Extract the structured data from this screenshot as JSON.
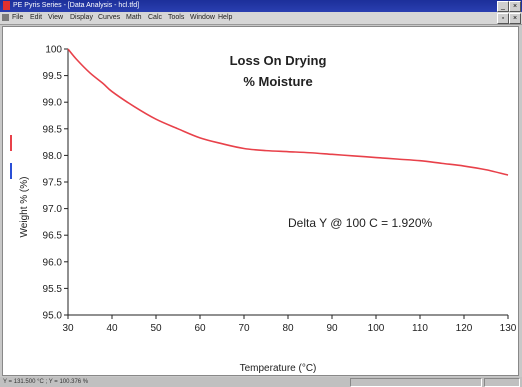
{
  "window": {
    "title": "PE Pyris Series - [Data Analysis - hcl.tfd]",
    "menu": [
      "File",
      "Edit",
      "View",
      "Display",
      "Curves",
      "Math",
      "Calc",
      "Tools",
      "Window",
      "Help"
    ]
  },
  "status": {
    "text": "Y = 131.500 °C ; Y = 100.376 %"
  },
  "colors": {
    "curve": "#e8414a",
    "legend_red": "#e8414a",
    "legend_blue": "#2a4fd6"
  },
  "chart_data": {
    "type": "line",
    "title": "Loss On Drying",
    "subtitle": "% Moisture",
    "xlabel": "Temperature (°C)",
    "ylabel": "Weight % (%)",
    "xlim": [
      30,
      130
    ],
    "ylim": [
      95.0,
      100.0
    ],
    "xticks": [
      30,
      40,
      50,
      60,
      70,
      80,
      90,
      100,
      110,
      120,
      130
    ],
    "yticks": [
      "95.0",
      "95.5",
      "96.0",
      "96.5",
      "97.0",
      "97.5",
      "98.0",
      "98.5",
      "99.0",
      "99.5",
      "100"
    ],
    "annotation": "Delta Y @ 100 C = 1.920%",
    "series": [
      {
        "x": [
          30,
          32,
          35,
          38,
          40,
          45,
          50,
          55,
          60,
          65,
          70,
          75,
          80,
          85,
          90,
          95,
          100,
          105,
          110,
          115,
          120,
          125,
          130
        ],
        "y": [
          100.0,
          99.8,
          99.55,
          99.35,
          99.2,
          98.92,
          98.68,
          98.5,
          98.33,
          98.22,
          98.13,
          98.09,
          98.07,
          98.05,
          98.02,
          97.99,
          97.96,
          97.93,
          97.9,
          97.85,
          97.8,
          97.73,
          97.63
        ]
      }
    ]
  }
}
